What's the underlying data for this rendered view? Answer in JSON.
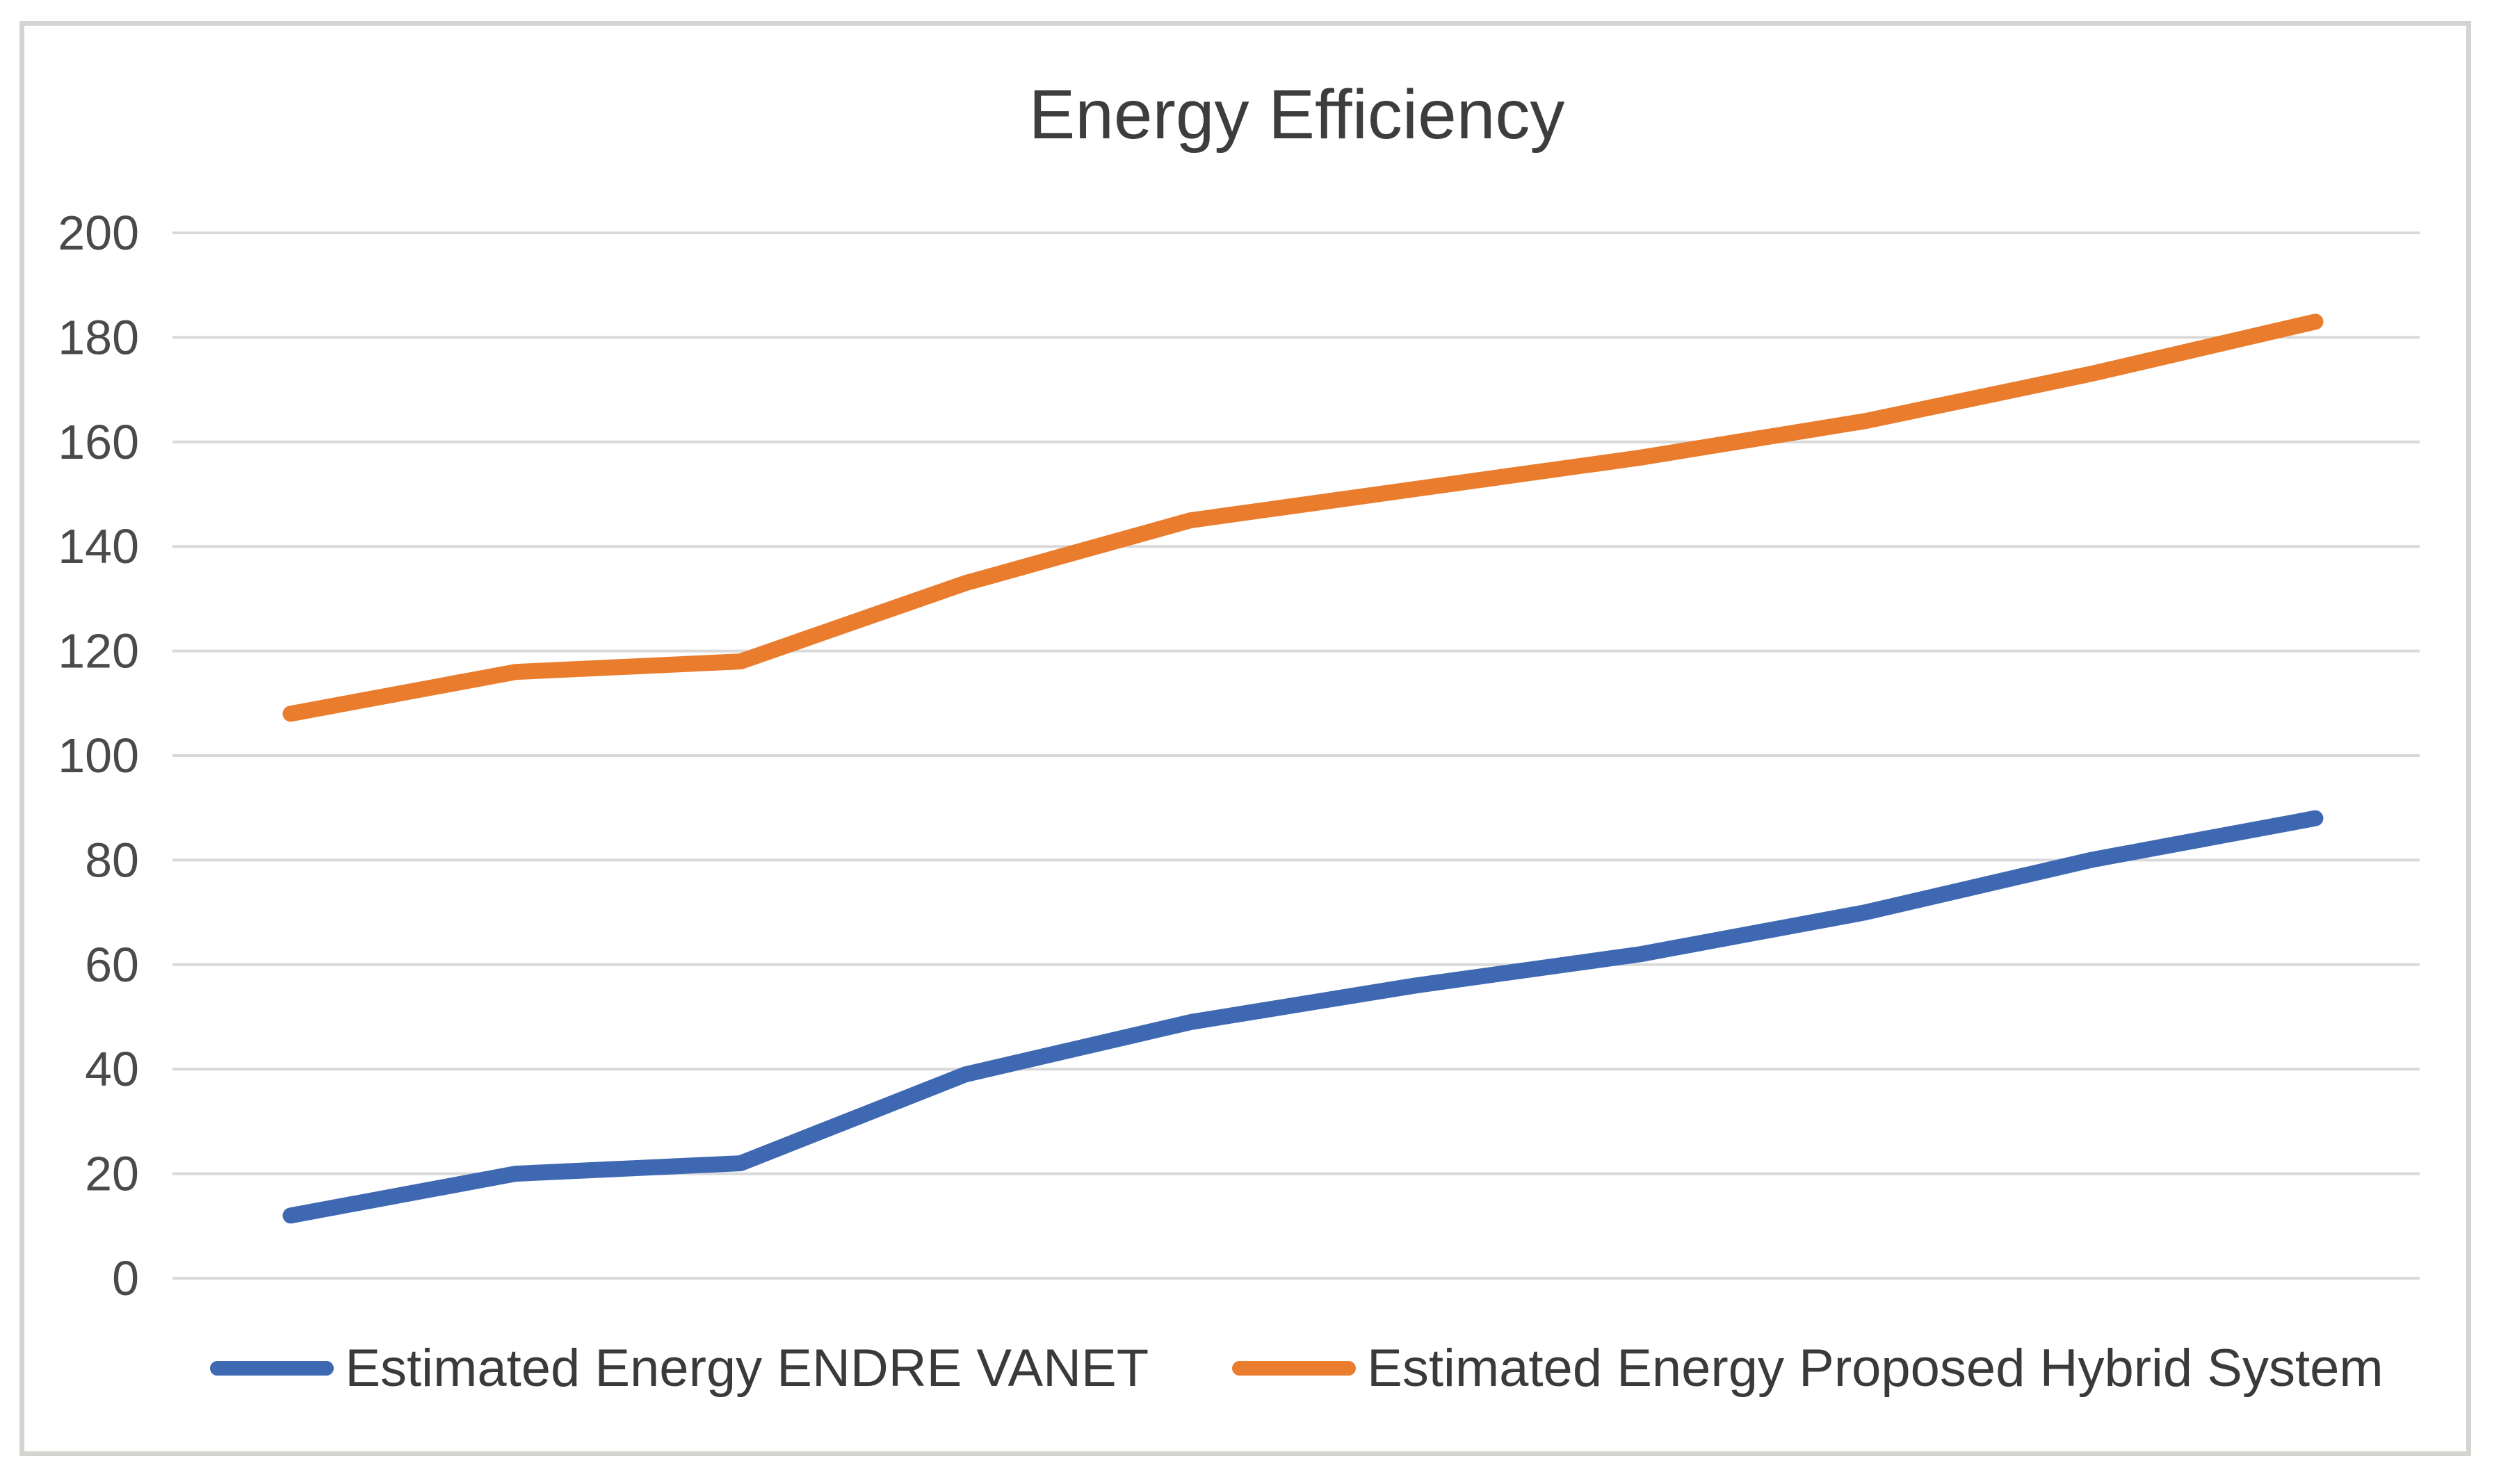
{
  "chart_title": "Energy Efficiency",
  "legend": {
    "items": [
      {
        "label": "Estimated Energy ENDRE VANET"
      },
      {
        "label": "Estimated Energy Proposed Hybrid System"
      }
    ]
  },
  "colors": {
    "series_blue": "#3e69b2",
    "series_orange": "#ea7c2e",
    "gridline": "#d9d9d9",
    "axis_label_text": "#4a4a4a",
    "title_text": "#3d3d3d",
    "frame_border": "#d4d4d0"
  },
  "chart_data": {
    "type": "line",
    "title": "Energy Efficiency",
    "xlabel": "",
    "ylabel": "",
    "x": [
      1,
      2,
      3,
      4,
      5,
      6,
      7,
      8,
      9,
      10
    ],
    "x_axis_labels_visible": false,
    "ylim": [
      0,
      200
    ],
    "ytick_step": 20,
    "ytick_labels": [
      "0",
      "20",
      "40",
      "60",
      "80",
      "100",
      "120",
      "140",
      "160",
      "180",
      "200"
    ],
    "grid": "horizontal",
    "legend_position": "bottom",
    "series": [
      {
        "name": "Estimated Energy ENDRE VANET",
        "color": "#3e69b2",
        "values": [
          12,
          20,
          22,
          39,
          49,
          56,
          62,
          70,
          80,
          88
        ]
      },
      {
        "name": "Estimated Energy Proposed Hybrid System",
        "color": "#ea7c2e",
        "values": [
          108,
          116,
          118,
          133,
          145,
          151,
          157,
          164,
          173,
          183
        ]
      }
    ]
  }
}
